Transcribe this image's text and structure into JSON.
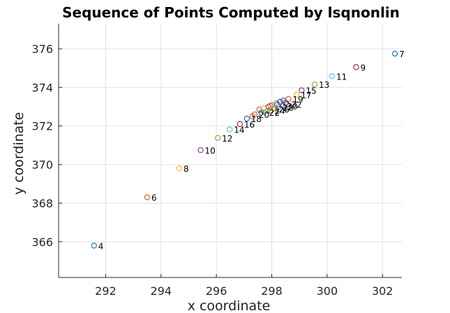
{
  "chart_data": {
    "type": "scatter",
    "title": "Sequence of Points Computed by lsqnonlin",
    "xlabel": "x coordinate",
    "ylabel": "y coordinate",
    "xlim": [
      290.3,
      302.7
    ],
    "ylim": [
      364.15,
      377.3
    ],
    "xticks": [
      292,
      294,
      296,
      298,
      300,
      302
    ],
    "yticks": [
      366,
      368,
      370,
      372,
      374,
      376
    ],
    "grid": true,
    "legend": "none",
    "colors": [
      "#0072BD",
      "#D95319",
      "#EDB120",
      "#7E2F8E",
      "#77AC30",
      "#4DBEEE",
      "#A2142F"
    ],
    "points": [
      {
        "label": "4",
        "x": 291.58,
        "y": 365.8
      },
      {
        "label": "6",
        "x": 293.5,
        "y": 368.3
      },
      {
        "label": "8",
        "x": 294.66,
        "y": 369.8
      },
      {
        "label": "10",
        "x": 295.43,
        "y": 370.75
      },
      {
        "label": "12",
        "x": 296.05,
        "y": 371.38
      },
      {
        "label": "14",
        "x": 296.48,
        "y": 371.82
      },
      {
        "label": "16",
        "x": 296.85,
        "y": 372.1
      },
      {
        "label": "18",
        "x": 297.1,
        "y": 372.38
      },
      {
        "label": "20",
        "x": 297.38,
        "y": 372.6
      },
      {
        "label": "22",
        "x": 297.75,
        "y": 372.72
      },
      {
        "label": "24",
        "x": 297.95,
        "y": 372.8
      },
      {
        "label": "26",
        "x": 298.1,
        "y": 372.88
      },
      {
        "label": "28",
        "x": 298.25,
        "y": 372.97
      },
      {
        "label": "30",
        "x": 298.4,
        "y": 373.03
      },
      {
        "label": "32",
        "x": 298.55,
        "y": 373.12
      },
      {
        "label": "19",
        "x": 298.6,
        "y": 373.4
      },
      {
        "label": "17",
        "x": 298.9,
        "y": 373.62
      },
      {
        "label": "15",
        "x": 299.08,
        "y": 373.85
      },
      {
        "label": "13",
        "x": 299.55,
        "y": 374.15
      },
      {
        "label": "11",
        "x": 300.18,
        "y": 374.58
      },
      {
        "label": "9",
        "x": 301.05,
        "y": 375.05
      },
      {
        "label": "7",
        "x": 302.45,
        "y": 375.75
      },
      {
        "label": "",
        "x": 297.55,
        "y": 372.85
      },
      {
        "label": "",
        "x": 297.72,
        "y": 372.92
      },
      {
        "label": "",
        "x": 297.88,
        "y": 373.0
      },
      {
        "label": "",
        "x": 298.02,
        "y": 373.08
      },
      {
        "label": "",
        "x": 298.15,
        "y": 373.18
      },
      {
        "label": "",
        "x": 298.3,
        "y": 373.25
      },
      {
        "label": "",
        "x": 298.42,
        "y": 373.32
      },
      {
        "label": "",
        "x": 297.95,
        "y": 373.05
      },
      {
        "label": "",
        "x": 298.05,
        "y": 372.95
      },
      {
        "label": "",
        "x": 298.2,
        "y": 373.12
      },
      {
        "label": "",
        "x": 297.85,
        "y": 372.78
      },
      {
        "label": "",
        "x": 298.35,
        "y": 373.05
      },
      {
        "label": "",
        "x": 298.5,
        "y": 373.2
      },
      {
        "label": "",
        "x": 297.62,
        "y": 372.7
      },
      {
        "label": "",
        "x": 297.3,
        "y": 372.5
      }
    ]
  }
}
